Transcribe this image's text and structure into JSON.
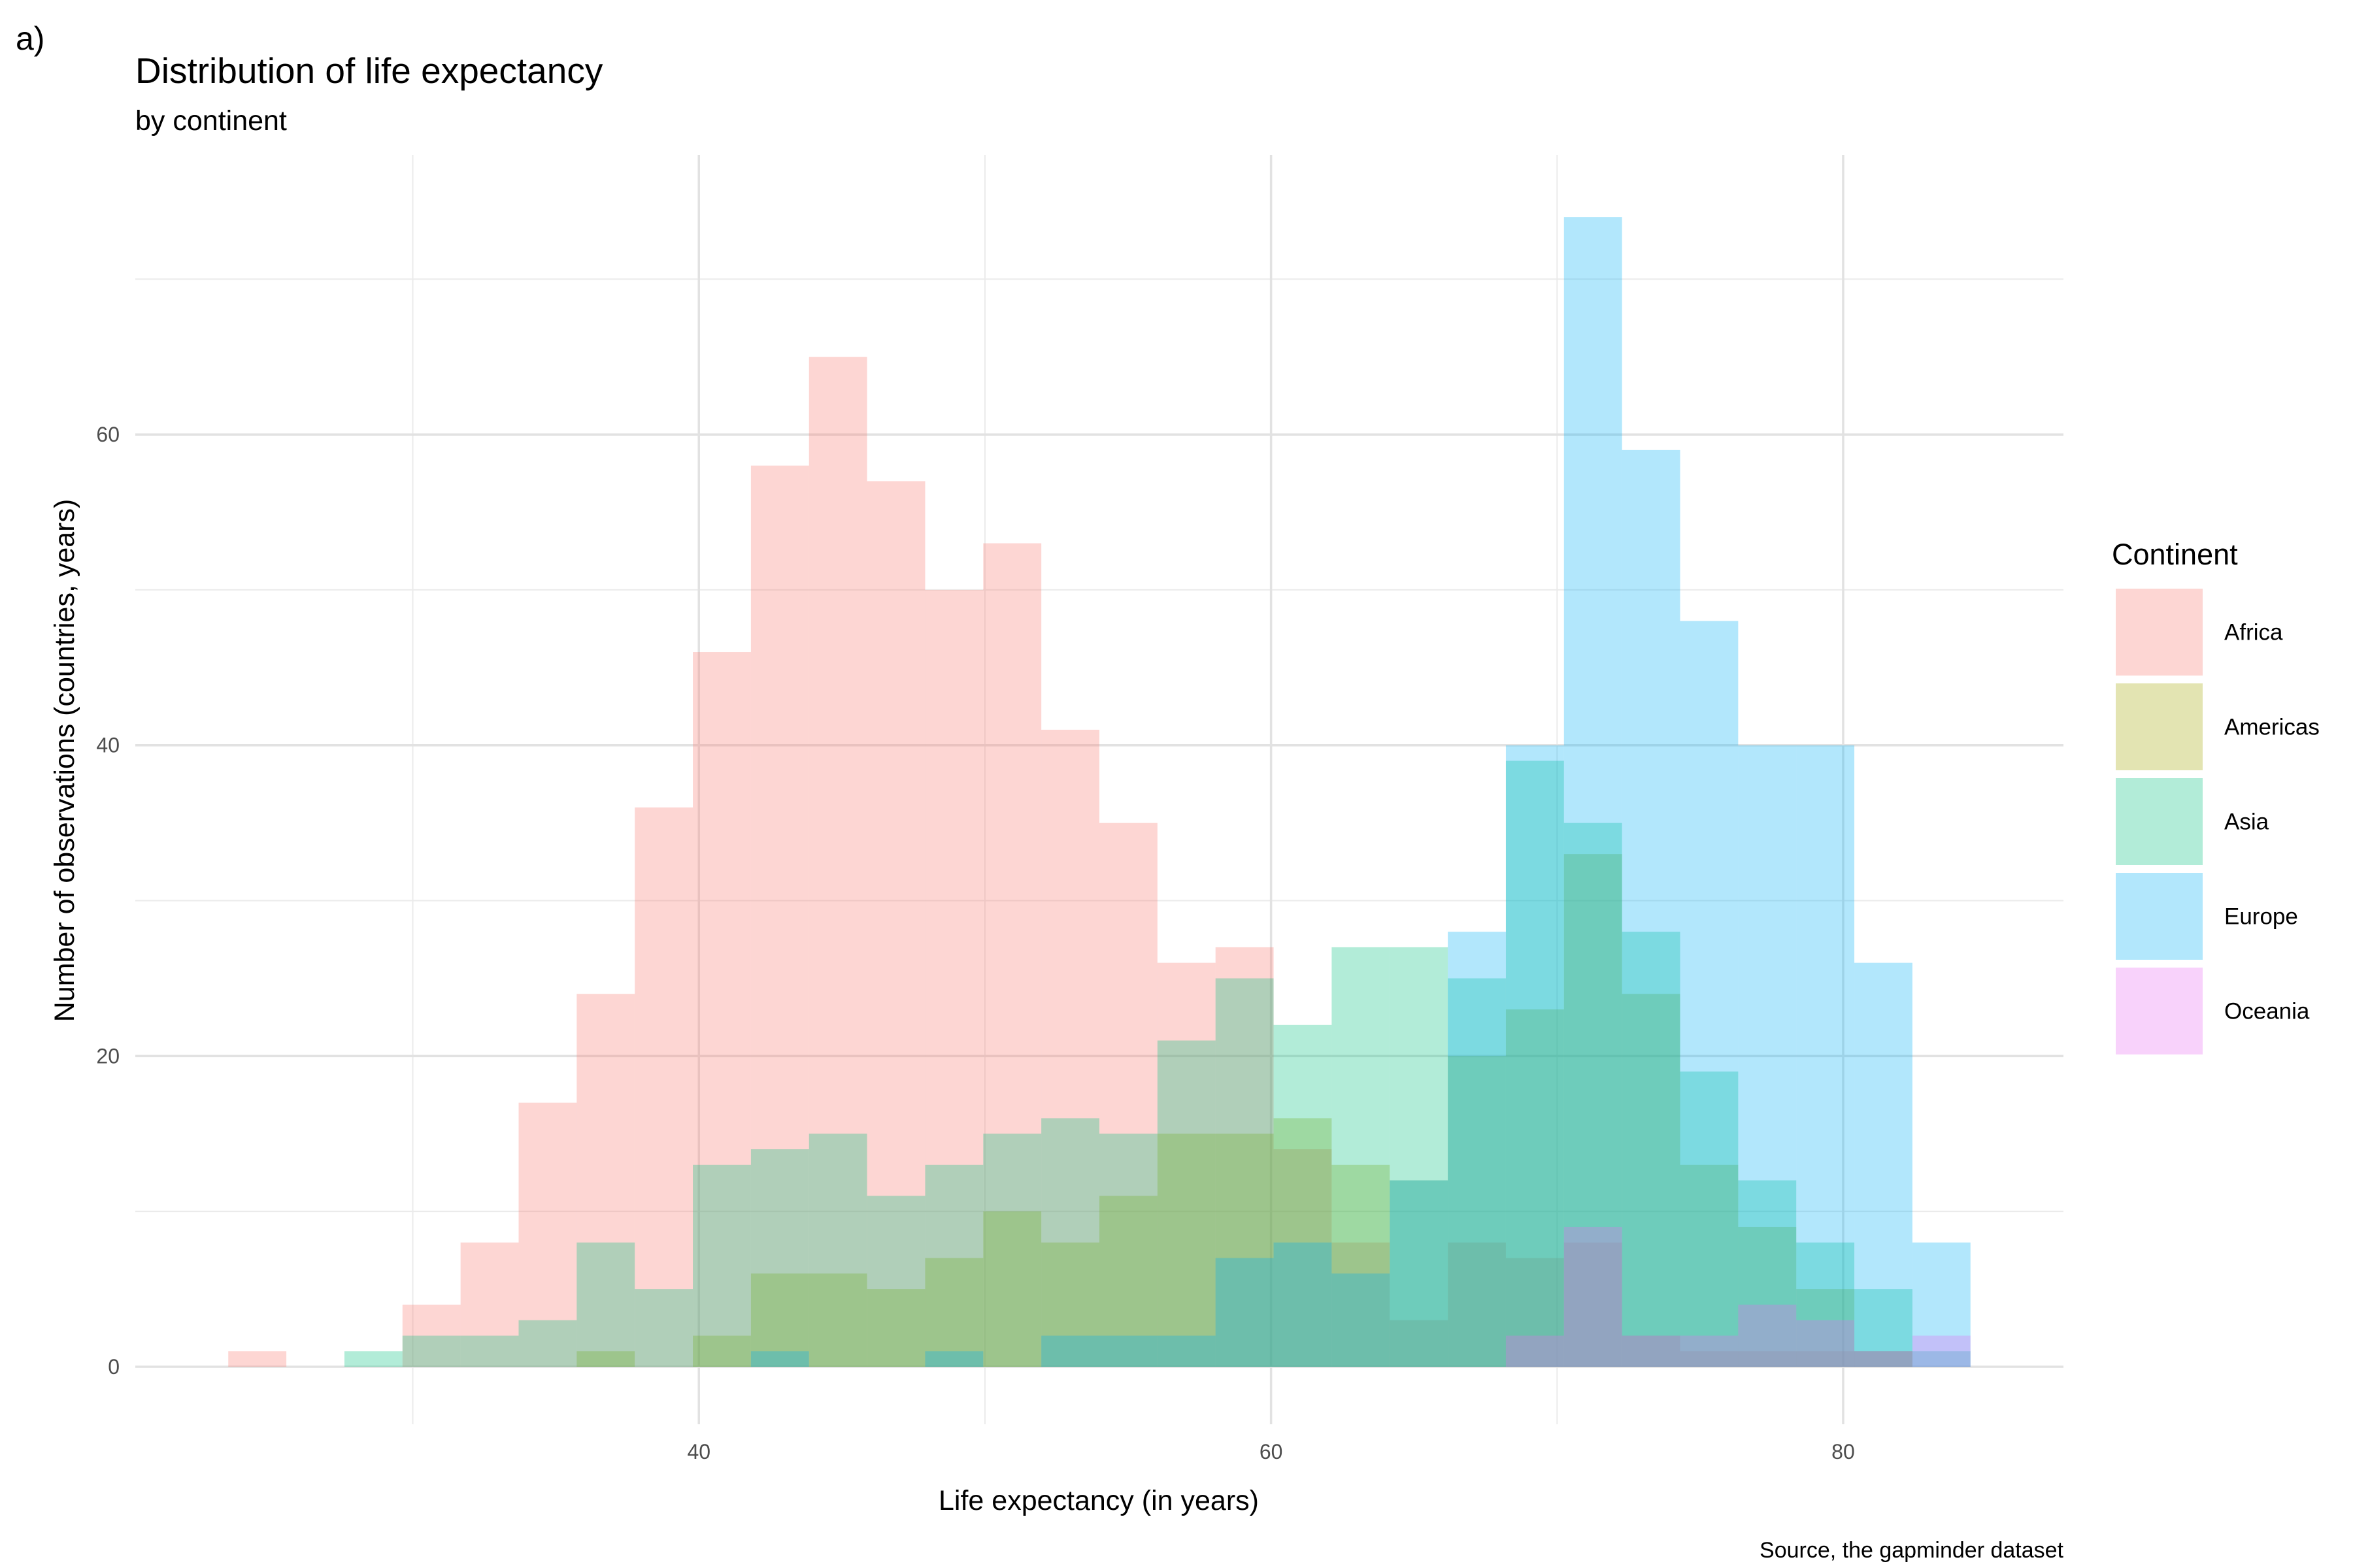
{
  "chart_data": {
    "type": "histogram",
    "tag": "a)",
    "title": "Distribution of life expectancy",
    "subtitle": "by continent",
    "xlabel": "Life expectancy (in years)",
    "ylabel": "Number of observations (countries, years)",
    "caption": "Source, the gapminder dataset",
    "xlim": [
      20.3,
      87.7
    ],
    "ylim": [
      -3.7,
      78.0
    ],
    "x_ticks": [
      40,
      60,
      80
    ],
    "x_tick_labels": [
      "40",
      "60",
      "80"
    ],
    "y_ticks": [
      0,
      20,
      40,
      60
    ],
    "y_tick_labels": [
      "0",
      "20",
      "40",
      "60"
    ],
    "x_minor_gridlines": [
      30,
      50,
      70
    ],
    "y_minor_gridlines": [
      10,
      30,
      50,
      70
    ],
    "grid": true,
    "bin_width": 2.03,
    "bin_start": 23.55,
    "legend": {
      "title": "Continent",
      "position": "right"
    },
    "series": [
      {
        "name": "Africa",
        "color": "#F8766D",
        "bins": [
          [
            0,
            1
          ],
          [
            3,
            4
          ],
          [
            4,
            8
          ],
          [
            5,
            17
          ],
          [
            6,
            24
          ],
          [
            7,
            36
          ],
          [
            8,
            46
          ],
          [
            9,
            58
          ],
          [
            10,
            65
          ],
          [
            11,
            57
          ],
          [
            12,
            50
          ],
          [
            13,
            53
          ],
          [
            14,
            41
          ],
          [
            15,
            35
          ],
          [
            16,
            26
          ],
          [
            17,
            27
          ],
          [
            18,
            14
          ],
          [
            19,
            8
          ],
          [
            20,
            3
          ],
          [
            21,
            8
          ],
          [
            22,
            7
          ],
          [
            23,
            8
          ],
          [
            24,
            2
          ],
          [
            25,
            1
          ],
          [
            26,
            1
          ],
          [
            27,
            1
          ],
          [
            28,
            1
          ]
        ]
      },
      {
        "name": "Americas",
        "color": "#A3A500",
        "bins": [
          [
            6,
            1
          ],
          [
            8,
            2
          ],
          [
            9,
            6
          ],
          [
            10,
            6
          ],
          [
            11,
            5
          ],
          [
            12,
            7
          ],
          [
            13,
            10
          ],
          [
            14,
            8
          ],
          [
            15,
            11
          ],
          [
            16,
            15
          ],
          [
            17,
            15
          ],
          [
            18,
            16
          ],
          [
            19,
            13
          ],
          [
            20,
            12
          ],
          [
            21,
            20
          ],
          [
            22,
            23
          ],
          [
            23,
            33
          ],
          [
            24,
            24
          ],
          [
            25,
            13
          ],
          [
            26,
            9
          ],
          [
            27,
            5
          ],
          [
            28,
            1
          ]
        ]
      },
      {
        "name": "Asia",
        "color": "#00BF7D",
        "bins": [
          [
            2,
            1
          ],
          [
            3,
            2
          ],
          [
            4,
            2
          ],
          [
            5,
            3
          ],
          [
            6,
            8
          ],
          [
            7,
            5
          ],
          [
            8,
            13
          ],
          [
            9,
            14
          ],
          [
            10,
            15
          ],
          [
            11,
            11
          ],
          [
            12,
            13
          ],
          [
            13,
            15
          ],
          [
            14,
            16
          ],
          [
            15,
            15
          ],
          [
            16,
            21
          ],
          [
            17,
            25
          ],
          [
            18,
            22
          ],
          [
            19,
            27
          ],
          [
            20,
            27
          ],
          [
            21,
            25
          ],
          [
            22,
            39
          ],
          [
            23,
            35
          ],
          [
            24,
            28
          ],
          [
            25,
            19
          ],
          [
            26,
            12
          ],
          [
            27,
            8
          ],
          [
            28,
            5
          ],
          [
            29,
            1
          ]
        ]
      },
      {
        "name": "Europe",
        "color": "#00B0F6",
        "bins": [
          [
            9,
            1
          ],
          [
            12,
            1
          ],
          [
            14,
            2
          ],
          [
            15,
            2
          ],
          [
            16,
            2
          ],
          [
            17,
            7
          ],
          [
            18,
            8
          ],
          [
            19,
            6
          ],
          [
            20,
            12
          ],
          [
            21,
            28
          ],
          [
            22,
            40
          ],
          [
            23,
            74
          ],
          [
            24,
            59
          ],
          [
            25,
            48
          ],
          [
            26,
            40
          ],
          [
            27,
            40
          ],
          [
            28,
            26
          ],
          [
            29,
            8
          ]
        ]
      },
      {
        "name": "Oceania",
        "color": "#E76BF3",
        "bins": [
          [
            22,
            2
          ],
          [
            23,
            9
          ],
          [
            24,
            2
          ],
          [
            25,
            2
          ],
          [
            26,
            4
          ],
          [
            27,
            3
          ],
          [
            28,
            1
          ],
          [
            29,
            2
          ]
        ]
      }
    ]
  }
}
